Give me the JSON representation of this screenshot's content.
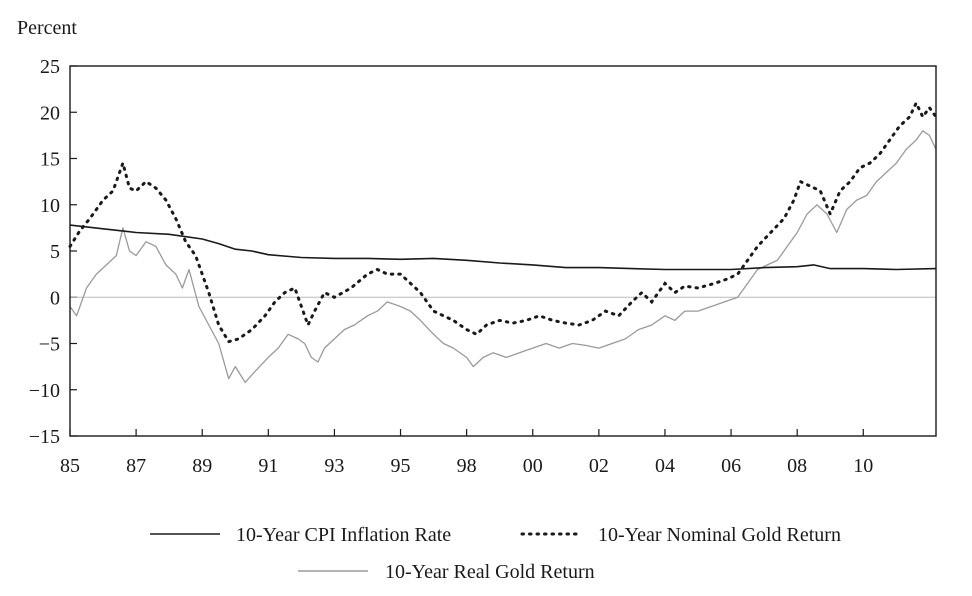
{
  "chart_data": {
    "type": "line",
    "ylabel": "Percent",
    "xlabel": "",
    "ylim": [
      -15,
      25
    ],
    "yticks": [
      25,
      20,
      15,
      10,
      5,
      0,
      -5,
      -10,
      -15
    ],
    "xlim": [
      1985,
      2011.2
    ],
    "xticks": [
      {
        "x": 1985,
        "label": "85"
      },
      {
        "x": 1987,
        "label": "87"
      },
      {
        "x": 1989,
        "label": "89"
      },
      {
        "x": 1991,
        "label": "91"
      },
      {
        "x": 1993,
        "label": "93"
      },
      {
        "x": 1995,
        "label": "95"
      },
      {
        "x": 1997,
        "label": "98"
      },
      {
        "x": 1999,
        "label": "00"
      },
      {
        "x": 2001,
        "label": "02"
      },
      {
        "x": 2003,
        "label": "04"
      },
      {
        "x": 2005,
        "label": "06"
      },
      {
        "x": 2007,
        "label": "08"
      },
      {
        "x": 2009,
        "label": "10"
      }
    ],
    "grid": false,
    "legend_position": "bottom",
    "series": [
      {
        "name": "10-Year CPI Inflation Rate",
        "color": "#1a1a1a",
        "style": "solid",
        "x": [
          1985,
          1986,
          1987,
          1988,
          1989,
          1989.5,
          1990,
          1990.5,
          1991,
          1992,
          1993,
          1994,
          1995,
          1996,
          1997,
          1998,
          1999,
          2000,
          2001,
          2002,
          2003,
          2004,
          2005,
          2006,
          2007,
          2007.5,
          2008,
          2009,
          2010,
          2011.2
        ],
        "values": [
          7.8,
          7.4,
          7.0,
          6.8,
          6.3,
          5.8,
          5.2,
          5.0,
          4.6,
          4.3,
          4.2,
          4.2,
          4.1,
          4.2,
          4.0,
          3.7,
          3.5,
          3.2,
          3.2,
          3.1,
          3.0,
          3.0,
          3.0,
          3.2,
          3.3,
          3.5,
          3.1,
          3.1,
          3.0,
          3.1
        ]
      },
      {
        "name": "10-Year Nominal Gold Return",
        "color": "#1a1a1a",
        "style": "dotted",
        "x": [
          1985,
          1985.3,
          1985.6,
          1986,
          1986.3,
          1986.6,
          1986.8,
          1987,
          1987.3,
          1987.6,
          1987.9,
          1988.2,
          1988.5,
          1988.8,
          1989.2,
          1989.5,
          1989.8,
          1990.1,
          1990.5,
          1990.9,
          1991.2,
          1991.5,
          1991.8,
          1992,
          1992.2,
          1992.4,
          1992.7,
          1993,
          1993.5,
          1994,
          1994.3,
          1994.6,
          1995,
          1995.3,
          1995.6,
          1996,
          1996.3,
          1996.6,
          1997,
          1997.3,
          1997.6,
          1998,
          1998.4,
          1998.8,
          1999.2,
          1999.6,
          2000,
          2000.4,
          2000.8,
          2001.2,
          2001.6,
          2002,
          2002.3,
          2002.6,
          2003,
          2003.3,
          2003.6,
          2004,
          2004.5,
          2004.9,
          2005.2,
          2005.5,
          2005.8,
          2006.2,
          2006.6,
          2006.9,
          2007.1,
          2007.4,
          2007.7,
          2008,
          2008.3,
          2008.6,
          2008.9,
          2009.2,
          2009.5,
          2009.8,
          2010.1,
          2010.4,
          2010.6,
          2010.8,
          2011,
          2011.2
        ],
        "values": [
          5.5,
          7.2,
          8.5,
          10.5,
          11.5,
          14.5,
          11.8,
          11.5,
          12.5,
          11.8,
          10.5,
          8.5,
          6.0,
          4.5,
          0.5,
          -3.0,
          -4.8,
          -4.5,
          -3.5,
          -2.0,
          -0.5,
          0.5,
          1.0,
          -1.0,
          -3.0,
          -1.5,
          0.5,
          0.0,
          1.0,
          2.5,
          3.0,
          2.5,
          2.5,
          1.5,
          0.5,
          -1.5,
          -2.0,
          -2.5,
          -3.5,
          -4.0,
          -3.0,
          -2.5,
          -2.8,
          -2.5,
          -2.0,
          -2.5,
          -2.8,
          -3.0,
          -2.5,
          -1.5,
          -2.0,
          -0.5,
          0.5,
          -0.5,
          1.5,
          0.5,
          1.2,
          1.0,
          1.5,
          2.0,
          2.5,
          4.0,
          5.5,
          7.0,
          8.5,
          10.5,
          12.5,
          12.0,
          11.5,
          9.0,
          11.5,
          12.5,
          14.0,
          14.5,
          15.5,
          17.0,
          18.5,
          19.5,
          21.0,
          19.5,
          20.5,
          19.5
        ]
      },
      {
        "name": "10-Year Real Gold Return",
        "color": "#9a9a9a",
        "style": "solid",
        "x": [
          1985,
          1985.2,
          1985.5,
          1985.8,
          1986.1,
          1986.4,
          1986.6,
          1986.8,
          1987,
          1987.3,
          1987.6,
          1987.9,
          1988.2,
          1988.4,
          1988.6,
          1988.9,
          1989.2,
          1989.5,
          1989.8,
          1990,
          1990.3,
          1990.6,
          1991,
          1991.3,
          1991.6,
          1991.9,
          1992.1,
          1992.3,
          1992.5,
          1992.7,
          1993,
          1993.3,
          1993.6,
          1994,
          1994.3,
          1994.6,
          1995,
          1995.3,
          1995.6,
          1996,
          1996.3,
          1996.6,
          1997,
          1997.2,
          1997.5,
          1997.8,
          1998.2,
          1998.6,
          1999,
          1999.4,
          1999.8,
          2000.2,
          2000.6,
          2001,
          2001.4,
          2001.8,
          2002.2,
          2002.6,
          2003,
          2003.3,
          2003.6,
          2004,
          2004.4,
          2004.8,
          2005.2,
          2005.5,
          2005.8,
          2006.1,
          2006.4,
          2006.7,
          2007,
          2007.3,
          2007.6,
          2007.9,
          2008.2,
          2008.5,
          2008.8,
          2009.1,
          2009.4,
          2009.7,
          2010,
          2010.3,
          2010.6,
          2010.8,
          2011,
          2011.2
        ],
        "values": [
          -1.0,
          -2.0,
          1.0,
          2.5,
          3.5,
          4.5,
          7.5,
          5.0,
          4.5,
          6.0,
          5.5,
          3.5,
          2.5,
          1.0,
          3.0,
          -1.0,
          -3.0,
          -5.0,
          -8.8,
          -7.5,
          -9.2,
          -8.0,
          -6.5,
          -5.5,
          -4.0,
          -4.5,
          -5.0,
          -6.5,
          -7.0,
          -5.5,
          -4.5,
          -3.5,
          -3.0,
          -2.0,
          -1.5,
          -0.5,
          -1.0,
          -1.5,
          -2.5,
          -4.0,
          -5.0,
          -5.5,
          -6.5,
          -7.5,
          -6.5,
          -6.0,
          -6.5,
          -6.0,
          -5.5,
          -5.0,
          -5.5,
          -5.0,
          -5.2,
          -5.5,
          -5.0,
          -4.5,
          -3.5,
          -3.0,
          -2.0,
          -2.5,
          -1.5,
          -1.5,
          -1.0,
          -0.5,
          0.0,
          1.5,
          3.0,
          3.5,
          4.0,
          5.5,
          7.0,
          9.0,
          10.0,
          9.0,
          7.0,
          9.5,
          10.5,
          11.0,
          12.5,
          13.5,
          14.5,
          16.0,
          17.0,
          18.0,
          17.5,
          16.0
        ]
      }
    ]
  }
}
